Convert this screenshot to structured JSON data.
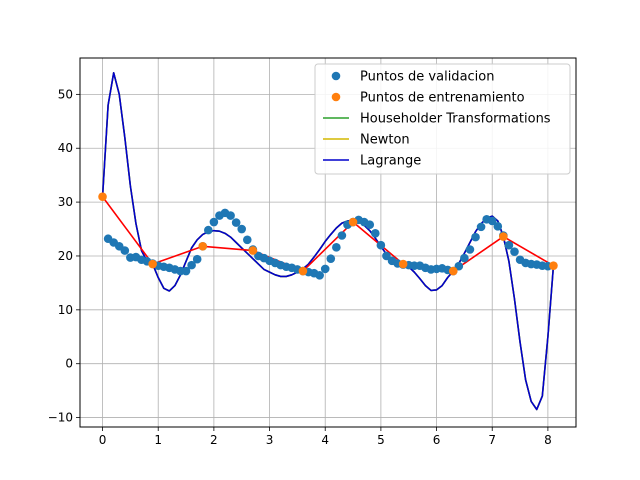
{
  "chart_data": {
    "type": "line",
    "title": "",
    "xlabel": "",
    "ylabel": "",
    "xlim": [
      -0.405,
      8.505
    ],
    "ylim": [
      -11.75,
      56.75
    ],
    "xticks": [
      0,
      1,
      2,
      3,
      4,
      5,
      6,
      7,
      8
    ],
    "yticks": [
      -10,
      0,
      10,
      20,
      30,
      40,
      50
    ],
    "grid": true,
    "legend_position": "top-right",
    "legend": [
      {
        "label": "Puntos de validacion",
        "kind": "marker",
        "color": "#1f77b4"
      },
      {
        "label": "Puntos de entrenamiento",
        "kind": "marker",
        "color": "#ff7f0e"
      },
      {
        "label": "Householder Transformations",
        "kind": "line",
        "color": "#2ca02c"
      },
      {
        "label": "Newton",
        "kind": "line",
        "color": "#d4b800"
      },
      {
        "label": "Lagrange",
        "kind": "line",
        "color": "#0000cc"
      }
    ],
    "series": [
      {
        "name": "Puntos de validacion",
        "kind": "scatter",
        "color": "#1f77b4",
        "x": [
          0.1,
          0.2,
          0.3,
          0.4,
          0.5,
          0.6,
          0.7,
          0.8,
          0.9,
          1.0,
          1.1,
          1.2,
          1.3,
          1.4,
          1.5,
          1.6,
          1.7,
          1.8,
          1.9,
          2.0,
          2.1,
          2.2,
          2.3,
          2.4,
          2.5,
          2.6,
          2.7,
          2.8,
          2.9,
          3.0,
          3.1,
          3.2,
          3.3,
          3.4,
          3.5,
          3.6,
          3.7,
          3.8,
          3.9,
          4.0,
          4.1,
          4.2,
          4.3,
          4.4,
          4.5,
          4.6,
          4.7,
          4.8,
          4.9,
          5.0,
          5.1,
          5.2,
          5.3,
          5.4,
          5.5,
          5.6,
          5.7,
          5.8,
          5.9,
          6.0,
          6.1,
          6.2,
          6.3,
          6.4,
          6.5,
          6.6,
          6.7,
          6.8,
          6.9,
          7.0,
          7.1,
          7.2,
          7.3,
          7.4,
          7.5,
          7.6,
          7.7,
          7.8,
          7.9,
          8.0
        ],
        "y": [
          23.2,
          22.5,
          21.8,
          21.0,
          19.7,
          19.8,
          19.3,
          19.0,
          18.6,
          18.2,
          18.0,
          17.8,
          17.5,
          17.2,
          17.2,
          18.3,
          19.4,
          21.8,
          24.8,
          26.3,
          27.5,
          28.0,
          27.5,
          26.2,
          25.0,
          23.0,
          21.2,
          20.0,
          19.6,
          19.1,
          18.7,
          18.3,
          18.0,
          17.8,
          17.5,
          17.2,
          17.0,
          16.8,
          16.4,
          17.6,
          19.5,
          21.6,
          23.8,
          25.8,
          26.3,
          26.7,
          26.3,
          25.8,
          24.2,
          22.0,
          20.0,
          19.1,
          18.6,
          18.4,
          18.3,
          18.2,
          18.2,
          17.8,
          17.5,
          17.6,
          17.7,
          17.4,
          17.2,
          18.1,
          19.6,
          21.2,
          23.5,
          25.4,
          26.8,
          26.5,
          25.5,
          23.8,
          22.0,
          20.8,
          19.3,
          18.7,
          18.5,
          18.4,
          18.2,
          18.1
        ]
      },
      {
        "name": "Puntos de entrenamiento",
        "kind": "scatter",
        "color": "#ff7f0e",
        "x": [
          0.0,
          0.9,
          1.8,
          2.7,
          3.6,
          4.5,
          5.4,
          6.3,
          7.2,
          8.1
        ],
        "y": [
          31.0,
          18.5,
          21.8,
          21.0,
          17.2,
          26.3,
          18.5,
          17.2,
          23.6,
          18.2
        ]
      },
      {
        "name": "Householder Transformations",
        "kind": "line",
        "color": "#2ca02c",
        "x": [
          0,
          0.1,
          0.2,
          0.3,
          0.4,
          0.5,
          0.6,
          0.7,
          0.8,
          0.9,
          1.0,
          1.1,
          1.2,
          1.3,
          1.4,
          1.5,
          1.6,
          1.7,
          1.8,
          1.9,
          2.0,
          2.1,
          2.2,
          2.3,
          2.4,
          2.5,
          2.6,
          2.7,
          2.8,
          2.9,
          3.0,
          3.1,
          3.2,
          3.3,
          3.4,
          3.5,
          3.6,
          3.7,
          3.8,
          3.9,
          4.0,
          4.1,
          4.2,
          4.3,
          4.4,
          4.5,
          4.6,
          4.7,
          4.8,
          4.9,
          5.0,
          5.1,
          5.2,
          5.3,
          5.4,
          5.5,
          5.6,
          5.7,
          5.8,
          5.9,
          6.0,
          6.1,
          6.2,
          6.3,
          6.4,
          6.5,
          6.6,
          6.7,
          6.8,
          6.9,
          7.0,
          7.1,
          7.2,
          7.3,
          7.4,
          7.5,
          7.6,
          7.7,
          7.8,
          7.9,
          8.0,
          8.1
        ],
        "y": [
          31.0,
          48.0,
          54.0,
          50.0,
          42.0,
          33.0,
          26.0,
          21.0,
          19.0,
          18.5,
          16.0,
          14.0,
          13.5,
          14.5,
          16.5,
          19.0,
          21.5,
          23.0,
          24.0,
          24.5,
          24.7,
          24.6,
          24.2,
          23.5,
          22.5,
          21.5,
          20.5,
          19.5,
          18.5,
          17.5,
          17.0,
          16.5,
          16.2,
          16.2,
          16.5,
          17.0,
          17.6,
          18.5,
          19.8,
          21.2,
          22.7,
          24.0,
          25.2,
          26.1,
          26.5,
          26.6,
          26.4,
          25.7,
          24.7,
          23.3,
          21.8,
          20.3,
          19.0,
          18.6,
          18.5,
          18.0,
          17.0,
          15.8,
          14.5,
          13.6,
          13.7,
          14.5,
          16.0,
          17.2,
          18.6,
          20.5,
          22.5,
          24.5,
          26.0,
          27.0,
          27.4,
          26.5,
          23.6,
          19.0,
          12.0,
          4.0,
          -3.0,
          -7.0,
          -8.5,
          -6.0,
          5.0,
          18.2
        ]
      },
      {
        "name": "Newton",
        "kind": "line",
        "color": "#d4b800",
        "x": [
          0,
          0.1,
          0.2,
          0.3,
          0.4,
          0.5,
          0.6,
          0.7,
          0.8,
          0.9,
          1.0,
          1.1,
          1.2,
          1.3,
          1.4,
          1.5,
          1.6,
          1.7,
          1.8,
          1.9,
          2.0,
          2.1,
          2.2,
          2.3,
          2.4,
          2.5,
          2.6,
          2.7,
          2.8,
          2.9,
          3.0,
          3.1,
          3.2,
          3.3,
          3.4,
          3.5,
          3.6,
          3.7,
          3.8,
          3.9,
          4.0,
          4.1,
          4.2,
          4.3,
          4.4,
          4.5,
          4.6,
          4.7,
          4.8,
          4.9,
          5.0,
          5.1,
          5.2,
          5.3,
          5.4,
          5.5,
          5.6,
          5.7,
          5.8,
          5.9,
          6.0,
          6.1,
          6.2,
          6.3,
          6.4,
          6.5,
          6.6,
          6.7,
          6.8,
          6.9,
          7.0,
          7.1,
          7.2,
          7.3,
          7.4,
          7.5,
          7.6,
          7.7,
          7.8,
          7.9,
          8.0,
          8.1
        ],
        "y": [
          31.0,
          48.0,
          54.0,
          50.0,
          42.0,
          33.0,
          26.0,
          21.0,
          19.0,
          18.5,
          16.0,
          14.0,
          13.5,
          14.5,
          16.5,
          19.0,
          21.5,
          23.0,
          24.0,
          24.5,
          24.7,
          24.6,
          24.2,
          23.5,
          22.5,
          21.5,
          20.5,
          19.5,
          18.5,
          17.5,
          17.0,
          16.5,
          16.2,
          16.2,
          16.5,
          17.0,
          17.6,
          18.5,
          19.8,
          21.2,
          22.7,
          24.0,
          25.2,
          26.1,
          26.5,
          26.6,
          26.4,
          25.7,
          24.7,
          23.3,
          21.8,
          20.3,
          19.0,
          18.6,
          18.5,
          18.0,
          17.0,
          15.8,
          14.5,
          13.6,
          13.7,
          14.5,
          16.0,
          17.2,
          18.6,
          20.5,
          22.5,
          24.5,
          26.0,
          27.0,
          27.4,
          26.5,
          23.6,
          19.0,
          12.0,
          4.0,
          -3.0,
          -7.0,
          -8.5,
          -6.0,
          5.0,
          18.2
        ]
      },
      {
        "name": "Lagrange",
        "kind": "line",
        "color": "#0000cc",
        "x": [
          0,
          0.1,
          0.2,
          0.3,
          0.4,
          0.5,
          0.6,
          0.7,
          0.8,
          0.9,
          1.0,
          1.1,
          1.2,
          1.3,
          1.4,
          1.5,
          1.6,
          1.7,
          1.8,
          1.9,
          2.0,
          2.1,
          2.2,
          2.3,
          2.4,
          2.5,
          2.6,
          2.7,
          2.8,
          2.9,
          3.0,
          3.1,
          3.2,
          3.3,
          3.4,
          3.5,
          3.6,
          3.7,
          3.8,
          3.9,
          4.0,
          4.1,
          4.2,
          4.3,
          4.4,
          4.5,
          4.6,
          4.7,
          4.8,
          4.9,
          5.0,
          5.1,
          5.2,
          5.3,
          5.4,
          5.5,
          5.6,
          5.7,
          5.8,
          5.9,
          6.0,
          6.1,
          6.2,
          6.3,
          6.4,
          6.5,
          6.6,
          6.7,
          6.8,
          6.9,
          7.0,
          7.1,
          7.2,
          7.3,
          7.4,
          7.5,
          7.6,
          7.7,
          7.8,
          7.9,
          8.0,
          8.1
        ],
        "y": [
          31.0,
          48.0,
          54.0,
          50.0,
          42.0,
          33.0,
          26.0,
          21.0,
          19.0,
          18.5,
          16.0,
          14.0,
          13.5,
          14.5,
          16.5,
          19.0,
          21.5,
          23.0,
          24.0,
          24.5,
          24.7,
          24.6,
          24.2,
          23.5,
          22.5,
          21.5,
          20.5,
          19.5,
          18.5,
          17.5,
          17.0,
          16.5,
          16.2,
          16.2,
          16.5,
          17.0,
          17.6,
          18.5,
          19.8,
          21.2,
          22.7,
          24.0,
          25.2,
          26.1,
          26.5,
          26.6,
          26.4,
          25.7,
          24.7,
          23.3,
          21.8,
          20.3,
          19.0,
          18.6,
          18.5,
          18.0,
          17.0,
          15.8,
          14.5,
          13.6,
          13.7,
          14.5,
          16.0,
          17.2,
          18.6,
          20.5,
          22.5,
          24.5,
          26.0,
          27.0,
          27.4,
          26.5,
          23.6,
          19.0,
          12.0,
          4.0,
          -3.0,
          -7.0,
          -8.5,
          -6.0,
          5.0,
          18.2
        ]
      },
      {
        "name": "",
        "kind": "line",
        "color": "#ff0000",
        "x": [
          0.0,
          0.9,
          1.8,
          2.7,
          3.6,
          4.5,
          5.4,
          6.3,
          7.2,
          8.1
        ],
        "y": [
          31.0,
          18.5,
          21.8,
          21.0,
          17.2,
          26.3,
          18.5,
          17.2,
          23.6,
          18.2
        ]
      }
    ]
  }
}
